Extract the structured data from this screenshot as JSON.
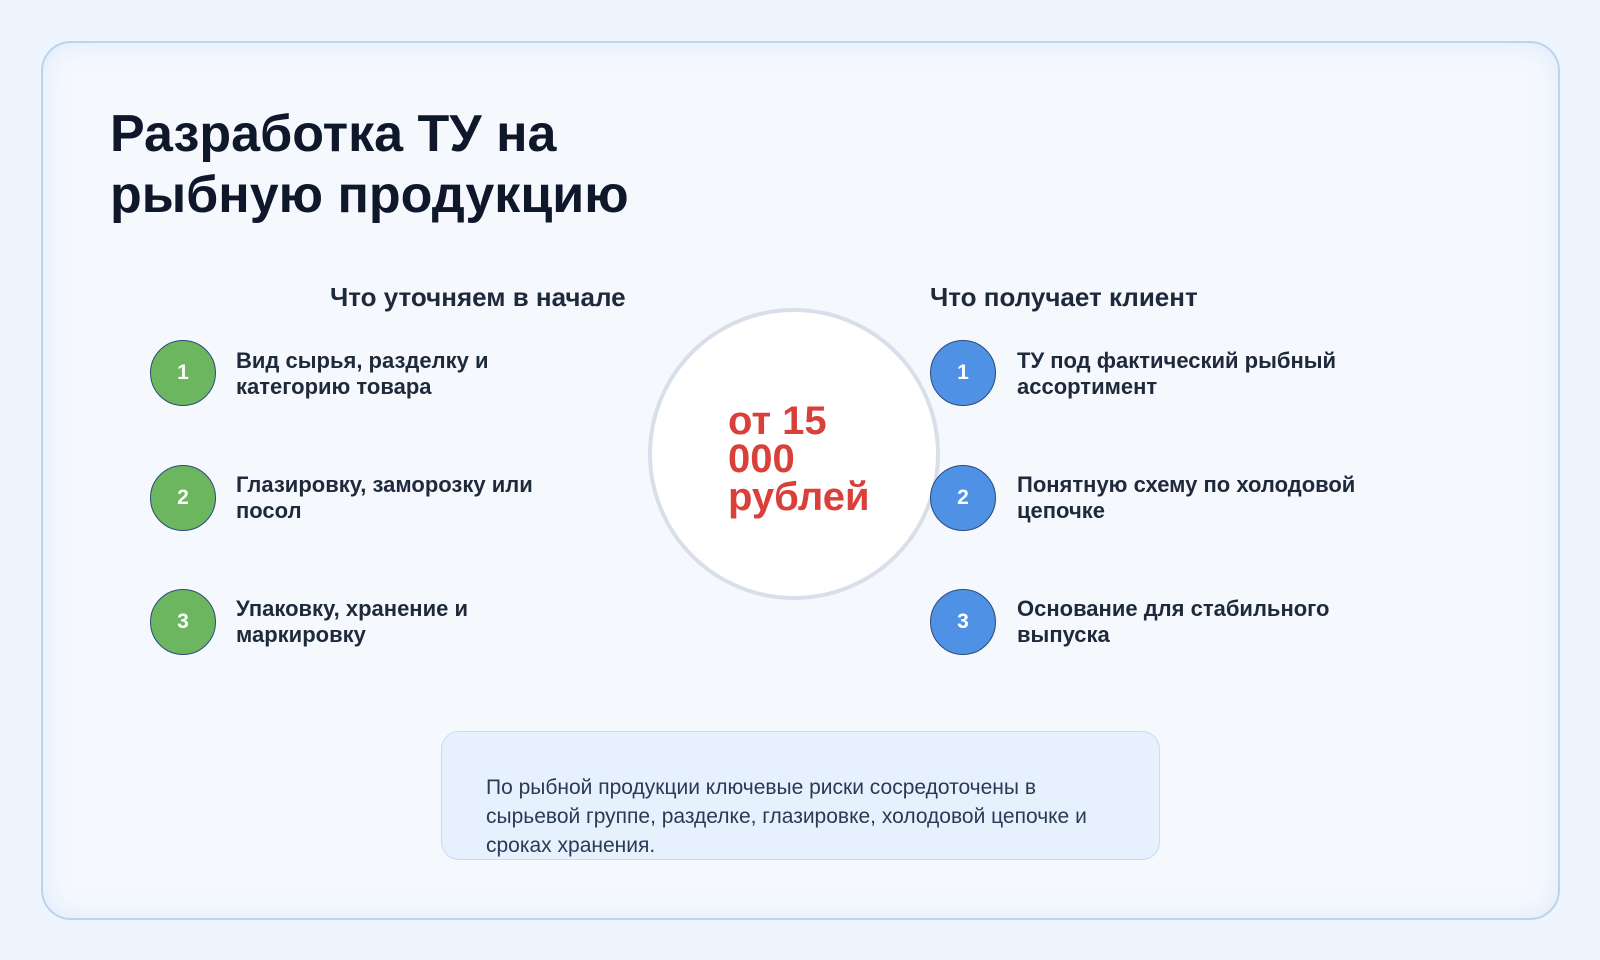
{
  "title": "Разработка ТУ на рыбную продукцию",
  "left": {
    "heading": "Что уточняем в начале",
    "items": [
      {
        "num": "1",
        "text": "Вид сырья, разделку и категорию товара"
      },
      {
        "num": "2",
        "text": "Глазировку, заморозку или посол"
      },
      {
        "num": "3",
        "text": "Упаковку, хранение и маркировку"
      }
    ]
  },
  "right": {
    "heading": "Что получает клиент",
    "items": [
      {
        "num": "1",
        "text": "ТУ под фактический рыбный ассортимент"
      },
      {
        "num": "2",
        "text": "Понятную схему по холодовой цепочке"
      },
      {
        "num": "3",
        "text": "Основание для стабильного выпуска"
      }
    ]
  },
  "price": "от 15 000 рублей",
  "note": "По рыбной продукции ключевые риски сосредоточены в сырьевой группе, разделке, глазировке, холодовой цепочке и сроках хранения.",
  "colors": {
    "accent_green": "#6bb65e",
    "accent_blue": "#4f91e4",
    "price": "#d9403a",
    "title": "#0f172a"
  }
}
